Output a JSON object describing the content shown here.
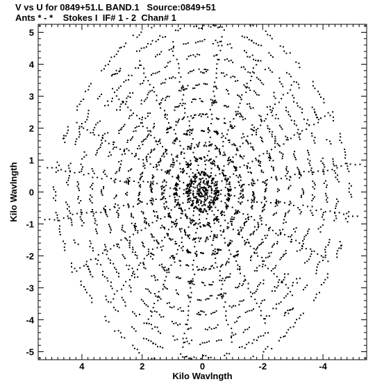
{
  "header": {
    "line1": "V vs U for 0849+51.L BAND.1   Source:0849+51",
    "line2": "Ants * - *    Stokes I  IF# 1 - 2  Chan# 1"
  },
  "chart_data": {
    "type": "scatter",
    "xlabel": "Kilo Wavlngth",
    "ylabel": "Kilo Wavlngth",
    "xlim": [
      5.45,
      -5.45
    ],
    "ylim": [
      -5.25,
      5.25
    ],
    "x_reversed": true,
    "grid": false,
    "legend": "none",
    "xticks": [
      4,
      2,
      0,
      -2,
      -4
    ],
    "yticks": [
      5,
      4,
      3,
      2,
      1,
      0,
      -1,
      -2,
      -3,
      -4,
      -5
    ],
    "xtick_labels": [
      "4",
      "2",
      "0",
      "-2",
      "-4"
    ],
    "ytick_labels": [
      "5",
      "4",
      "3",
      "2",
      "1",
      "0",
      "-1",
      "-2",
      "-3",
      "-4",
      "-5"
    ],
    "marker_color": "#000000",
    "spokes": [
      {
        "angle_deg": 8,
        "max_radius": 5.2
      },
      {
        "angle_deg": 27,
        "max_radius": 4.7
      },
      {
        "angle_deg": 47,
        "max_radius": 4.4
      },
      {
        "angle_deg": 63,
        "max_radius": 4.6
      },
      {
        "angle_deg": 78,
        "max_radius": 4.8
      },
      {
        "angle_deg": 97,
        "max_radius": 4.9
      },
      {
        "angle_deg": 114,
        "max_radius": 4.5
      },
      {
        "angle_deg": 132,
        "max_radius": 4.6
      },
      {
        "angle_deg": 150,
        "max_radius": 5.0
      },
      {
        "angle_deg": 170,
        "max_radius": 5.3
      }
    ],
    "spoke_points_per_side": 34,
    "spoke_spread": 0.06,
    "arc_rings": [
      0.5,
      0.9,
      1.3,
      1.7,
      2.1,
      2.5,
      2.9,
      3.3,
      3.7,
      4.1,
      4.5,
      4.9
    ],
    "arc_count_per_ring": 26
  }
}
